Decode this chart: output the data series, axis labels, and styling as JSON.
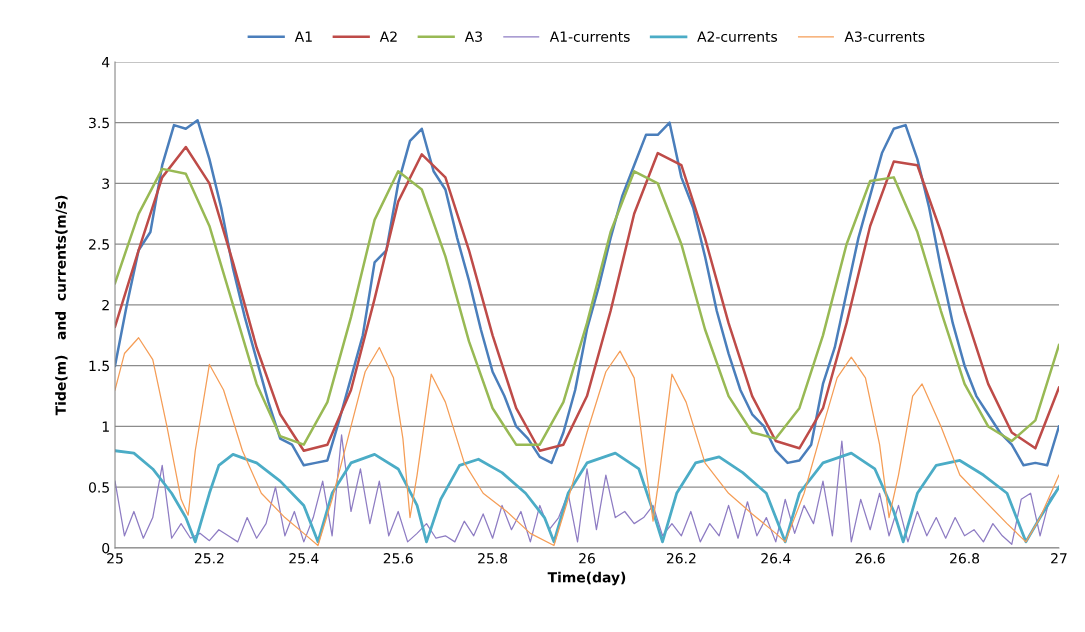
{
  "chart_data": {
    "type": "line",
    "xlabel": "Time(day)",
    "ylabel": "Tide(m)   and  currents(m/s)",
    "xlim": [
      25,
      27
    ],
    "xticks": [
      25,
      25.2,
      25.4,
      25.6,
      25.8,
      26,
      26.2,
      26.4,
      26.6,
      26.8,
      27
    ],
    "ylim": [
      0,
      4
    ],
    "yticks": [
      0,
      0.5,
      1,
      1.5,
      2,
      2.5,
      3,
      3.5,
      4
    ],
    "grid": "y",
    "legend": "top",
    "marker": "none",
    "line_style": "solid",
    "series": [
      {
        "name": "A1",
        "color": "#4a7ebb",
        "x": [
          25.0,
          25.025,
          25.05,
          25.075,
          25.1,
          25.125,
          25.15,
          25.175,
          25.2,
          25.225,
          25.25,
          25.275,
          25.3,
          25.325,
          25.35,
          25.375,
          25.4,
          25.425,
          25.45,
          25.475,
          25.5,
          25.525,
          25.55,
          25.575,
          25.6,
          25.625,
          25.65,
          25.675,
          25.7,
          25.725,
          25.75,
          25.775,
          25.8,
          25.825,
          25.85,
          25.875,
          25.9,
          25.925,
          25.95,
          25.975,
          26.0,
          26.025,
          26.05,
          26.075,
          26.1,
          26.125,
          26.15,
          26.175,
          26.2,
          26.225,
          26.25,
          26.275,
          26.3,
          26.325,
          26.35,
          26.375,
          26.4,
          26.425,
          26.45,
          26.475,
          26.5,
          26.525,
          26.55,
          26.575,
          26.6,
          26.625,
          26.65,
          26.675,
          26.7,
          26.725,
          26.75,
          26.775,
          26.8,
          26.825,
          26.85,
          26.875,
          26.9,
          26.925,
          26.95,
          26.975,
          27.0
        ],
        "values": [
          1.5,
          2.0,
          2.45,
          2.6,
          3.15,
          3.48,
          3.45,
          3.52,
          3.2,
          2.8,
          2.3,
          1.9,
          1.55,
          1.2,
          0.9,
          0.85,
          0.68,
          0.7,
          0.72,
          1.05,
          1.4,
          1.75,
          2.35,
          2.45,
          3.0,
          3.35,
          3.45,
          3.1,
          2.95,
          2.55,
          2.2,
          1.8,
          1.45,
          1.25,
          1.0,
          0.9,
          0.75,
          0.7,
          0.95,
          1.3,
          1.8,
          2.15,
          2.55,
          2.9,
          3.15,
          3.4,
          3.4,
          3.5,
          3.05,
          2.8,
          2.4,
          1.95,
          1.6,
          1.3,
          1.1,
          1.0,
          0.8,
          0.7,
          0.72,
          0.85,
          1.35,
          1.65,
          2.1,
          2.55,
          2.9,
          3.25,
          3.45,
          3.48,
          3.2,
          2.8,
          2.3,
          1.85,
          1.5,
          1.25,
          1.1,
          0.95,
          0.85,
          0.68,
          0.7,
          0.68,
          1.0
        ]
      },
      {
        "name": "A2",
        "color": "#be4b48",
        "x": [
          25.0,
          25.05,
          25.1,
          25.15,
          25.2,
          25.25,
          25.3,
          25.35,
          25.4,
          25.45,
          25.5,
          25.55,
          25.6,
          25.65,
          25.7,
          25.75,
          25.8,
          25.85,
          25.9,
          25.95,
          26.0,
          26.05,
          26.1,
          26.15,
          26.2,
          26.25,
          26.3,
          26.35,
          26.4,
          26.45,
          26.5,
          26.55,
          26.6,
          26.65,
          26.7,
          26.75,
          26.8,
          26.85,
          26.9,
          26.95,
          27.0
        ],
        "values": [
          1.82,
          2.45,
          3.05,
          3.3,
          3.0,
          2.35,
          1.65,
          1.1,
          0.8,
          0.85,
          1.3,
          2.05,
          2.85,
          3.24,
          3.05,
          2.45,
          1.75,
          1.15,
          0.8,
          0.85,
          1.25,
          1.95,
          2.75,
          3.25,
          3.15,
          2.55,
          1.85,
          1.25,
          0.88,
          0.82,
          1.15,
          1.85,
          2.65,
          3.18,
          3.15,
          2.6,
          1.95,
          1.35,
          0.95,
          0.82,
          1.32
        ]
      },
      {
        "name": "A3",
        "color": "#98b954",
        "x": [
          25.0,
          25.05,
          25.1,
          25.15,
          25.2,
          25.25,
          25.3,
          25.35,
          25.4,
          25.45,
          25.5,
          25.55,
          25.6,
          25.65,
          25.7,
          25.75,
          25.8,
          25.85,
          25.9,
          25.95,
          26.0,
          26.05,
          26.1,
          26.15,
          26.2,
          26.25,
          26.3,
          26.35,
          26.4,
          26.45,
          26.5,
          26.55,
          26.6,
          26.65,
          26.7,
          26.75,
          26.8,
          26.85,
          26.9,
          26.95,
          27.0
        ],
        "values": [
          2.18,
          2.75,
          3.12,
          3.08,
          2.65,
          2.0,
          1.35,
          0.92,
          0.85,
          1.2,
          1.9,
          2.7,
          3.1,
          2.95,
          2.4,
          1.7,
          1.15,
          0.85,
          0.85,
          1.2,
          1.85,
          2.6,
          3.1,
          3.0,
          2.5,
          1.8,
          1.25,
          0.95,
          0.9,
          1.15,
          1.75,
          2.5,
          3.02,
          3.05,
          2.6,
          1.95,
          1.35,
          1.0,
          0.88,
          1.05,
          1.67
        ]
      },
      {
        "name": "A1-currents",
        "color": "#8e7cc3",
        "x": [
          25.0,
          25.02,
          25.04,
          25.06,
          25.08,
          25.1,
          25.12,
          25.14,
          25.16,
          25.18,
          25.2,
          25.22,
          25.24,
          25.26,
          25.28,
          25.3,
          25.32,
          25.34,
          25.36,
          25.38,
          25.4,
          25.42,
          25.44,
          25.46,
          25.48,
          25.5,
          25.52,
          25.54,
          25.56,
          25.58,
          25.6,
          25.62,
          25.64,
          25.66,
          25.68,
          25.7,
          25.72,
          25.74,
          25.76,
          25.78,
          25.8,
          25.82,
          25.84,
          25.86,
          25.88,
          25.9,
          25.92,
          25.94,
          25.96,
          25.98,
          26.0,
          26.02,
          26.04,
          26.06,
          26.08,
          26.1,
          26.12,
          26.14,
          26.16,
          26.18,
          26.2,
          26.22,
          26.24,
          26.26,
          26.28,
          26.3,
          26.32,
          26.34,
          26.36,
          26.38,
          26.4,
          26.42,
          26.44,
          26.46,
          26.48,
          26.5,
          26.52,
          26.54,
          26.56,
          26.58,
          26.6,
          26.62,
          26.64,
          26.66,
          26.68,
          26.7,
          26.72,
          26.74,
          26.76,
          26.78,
          26.8,
          26.82,
          26.84,
          26.86,
          26.88,
          26.9,
          26.92,
          26.94,
          26.96,
          26.98,
          27.0
        ],
        "values": [
          0.55,
          0.1,
          0.3,
          0.08,
          0.25,
          0.68,
          0.08,
          0.2,
          0.08,
          0.12,
          0.06,
          0.15,
          0.1,
          0.05,
          0.25,
          0.08,
          0.2,
          0.5,
          0.1,
          0.3,
          0.05,
          0.25,
          0.55,
          0.1,
          0.93,
          0.3,
          0.65,
          0.2,
          0.55,
          0.1,
          0.3,
          0.05,
          0.12,
          0.2,
          0.08,
          0.1,
          0.05,
          0.22,
          0.1,
          0.28,
          0.08,
          0.35,
          0.15,
          0.3,
          0.05,
          0.35,
          0.15,
          0.25,
          0.45,
          0.05,
          0.65,
          0.15,
          0.6,
          0.25,
          0.3,
          0.2,
          0.25,
          0.35,
          0.1,
          0.2,
          0.1,
          0.3,
          0.05,
          0.2,
          0.1,
          0.35,
          0.08,
          0.38,
          0.1,
          0.25,
          0.05,
          0.4,
          0.12,
          0.35,
          0.2,
          0.55,
          0.1,
          0.88,
          0.05,
          0.4,
          0.15,
          0.45,
          0.1,
          0.35,
          0.05,
          0.3,
          0.1,
          0.25,
          0.08,
          0.25,
          0.1,
          0.15,
          0.05,
          0.2,
          0.1,
          0.03,
          0.4,
          0.45,
          0.1,
          0.4,
          0.5
        ]
      },
      {
        "name": "A2-currents",
        "color": "#4bacc6",
        "x": [
          25.0,
          25.04,
          25.08,
          25.12,
          25.15,
          25.17,
          25.2,
          25.22,
          25.25,
          25.3,
          25.35,
          25.4,
          25.43,
          25.46,
          25.5,
          25.55,
          25.6,
          25.64,
          25.66,
          25.69,
          25.73,
          25.77,
          25.82,
          25.87,
          25.91,
          25.93,
          25.96,
          26.0,
          26.06,
          26.11,
          26.14,
          26.16,
          26.19,
          26.23,
          26.28,
          26.33,
          26.38,
          26.4,
          26.42,
          26.45,
          26.5,
          26.56,
          26.61,
          26.65,
          26.67,
          26.7,
          26.74,
          26.79,
          26.84,
          26.89,
          26.93,
          26.96,
          27.0
        ],
        "values": [
          0.8,
          0.78,
          0.65,
          0.45,
          0.25,
          0.05,
          0.45,
          0.68,
          0.77,
          0.7,
          0.55,
          0.35,
          0.05,
          0.45,
          0.7,
          0.77,
          0.65,
          0.35,
          0.05,
          0.4,
          0.68,
          0.73,
          0.62,
          0.45,
          0.25,
          0.05,
          0.45,
          0.7,
          0.78,
          0.65,
          0.3,
          0.05,
          0.45,
          0.7,
          0.75,
          0.62,
          0.45,
          0.25,
          0.05,
          0.45,
          0.7,
          0.78,
          0.65,
          0.3,
          0.05,
          0.45,
          0.68,
          0.72,
          0.6,
          0.45,
          0.05,
          0.25,
          0.5
        ]
      },
      {
        "name": "A3-currents",
        "color": "#f59d56",
        "x": [
          25.0,
          25.02,
          25.05,
          25.08,
          25.11,
          25.14,
          25.155,
          25.17,
          25.2,
          25.23,
          25.27,
          25.31,
          25.36,
          25.4,
          25.43,
          25.46,
          25.5,
          25.53,
          25.56,
          25.59,
          25.61,
          25.625,
          25.64,
          25.67,
          25.7,
          25.74,
          25.78,
          25.83,
          25.88,
          25.93,
          25.96,
          26.0,
          26.04,
          26.07,
          26.1,
          26.12,
          26.14,
          26.15,
          26.18,
          26.21,
          26.25,
          26.3,
          26.35,
          26.4,
          26.42,
          26.46,
          26.5,
          26.53,
          26.56,
          26.59,
          26.62,
          26.64,
          26.66,
          26.69,
          26.71,
          26.75,
          26.79,
          26.84,
          26.89,
          26.93,
          26.96,
          27.0
        ],
        "values": [
          1.3,
          1.6,
          1.73,
          1.55,
          1.0,
          0.4,
          0.27,
          0.8,
          1.51,
          1.3,
          0.8,
          0.45,
          0.25,
          0.12,
          0.02,
          0.4,
          1.0,
          1.45,
          1.65,
          1.4,
          0.9,
          0.25,
          0.6,
          1.43,
          1.2,
          0.7,
          0.45,
          0.3,
          0.12,
          0.02,
          0.4,
          0.95,
          1.45,
          1.62,
          1.4,
          0.8,
          0.22,
          0.5,
          1.43,
          1.2,
          0.7,
          0.45,
          0.28,
          0.12,
          0.05,
          0.45,
          1.0,
          1.4,
          1.57,
          1.4,
          0.85,
          0.25,
          0.6,
          1.25,
          1.35,
          1.0,
          0.6,
          0.4,
          0.2,
          0.05,
          0.25,
          0.6
        ]
      }
    ]
  }
}
